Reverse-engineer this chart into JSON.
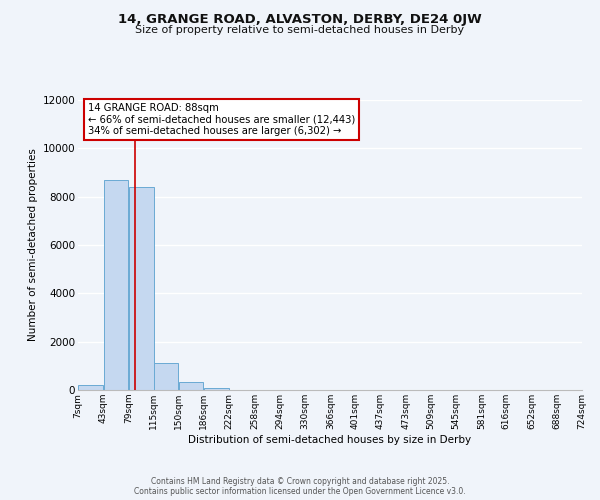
{
  "title": "14, GRANGE ROAD, ALVASTON, DERBY, DE24 0JW",
  "subtitle": "Size of property relative to semi-detached houses in Derby",
  "xlabel": "Distribution of semi-detached houses by size in Derby",
  "ylabel": "Number of semi-detached properties",
  "bar_color": "#c5d8f0",
  "bar_edge_color": "#6aaad4",
  "background_color": "#f0f4fa",
  "grid_color": "#ffffff",
  "bin_edges": [
    7,
    43,
    79,
    115,
    150,
    186,
    222,
    258,
    294,
    330,
    366,
    401,
    437,
    473,
    509,
    545,
    581,
    616,
    652,
    688,
    724
  ],
  "bin_labels": [
    "7sqm",
    "43sqm",
    "79sqm",
    "115sqm",
    "150sqm",
    "186sqm",
    "222sqm",
    "258sqm",
    "294sqm",
    "330sqm",
    "366sqm",
    "401sqm",
    "437sqm",
    "473sqm",
    "509sqm",
    "545sqm",
    "581sqm",
    "616sqm",
    "652sqm",
    "688sqm",
    "724sqm"
  ],
  "bar_heights": [
    200,
    8700,
    8400,
    1100,
    350,
    80,
    0,
    0,
    0,
    0,
    0,
    0,
    0,
    0,
    0,
    0,
    0,
    0,
    0,
    0
  ],
  "property_line_x": 88,
  "red_line_color": "#cc0000",
  "annotation_title": "14 GRANGE ROAD: 88sqm",
  "annotation_line1": "← 66% of semi-detached houses are smaller (12,443)",
  "annotation_line2": "34% of semi-detached houses are larger (6,302) →",
  "annotation_box_color": "#ffffff",
  "annotation_box_edge": "#cc0000",
  "ylim": [
    0,
    12000
  ],
  "yticks": [
    0,
    2000,
    4000,
    6000,
    8000,
    10000,
    12000
  ],
  "footer1": "Contains HM Land Registry data © Crown copyright and database right 2025.",
  "footer2": "Contains public sector information licensed under the Open Government Licence v3.0."
}
